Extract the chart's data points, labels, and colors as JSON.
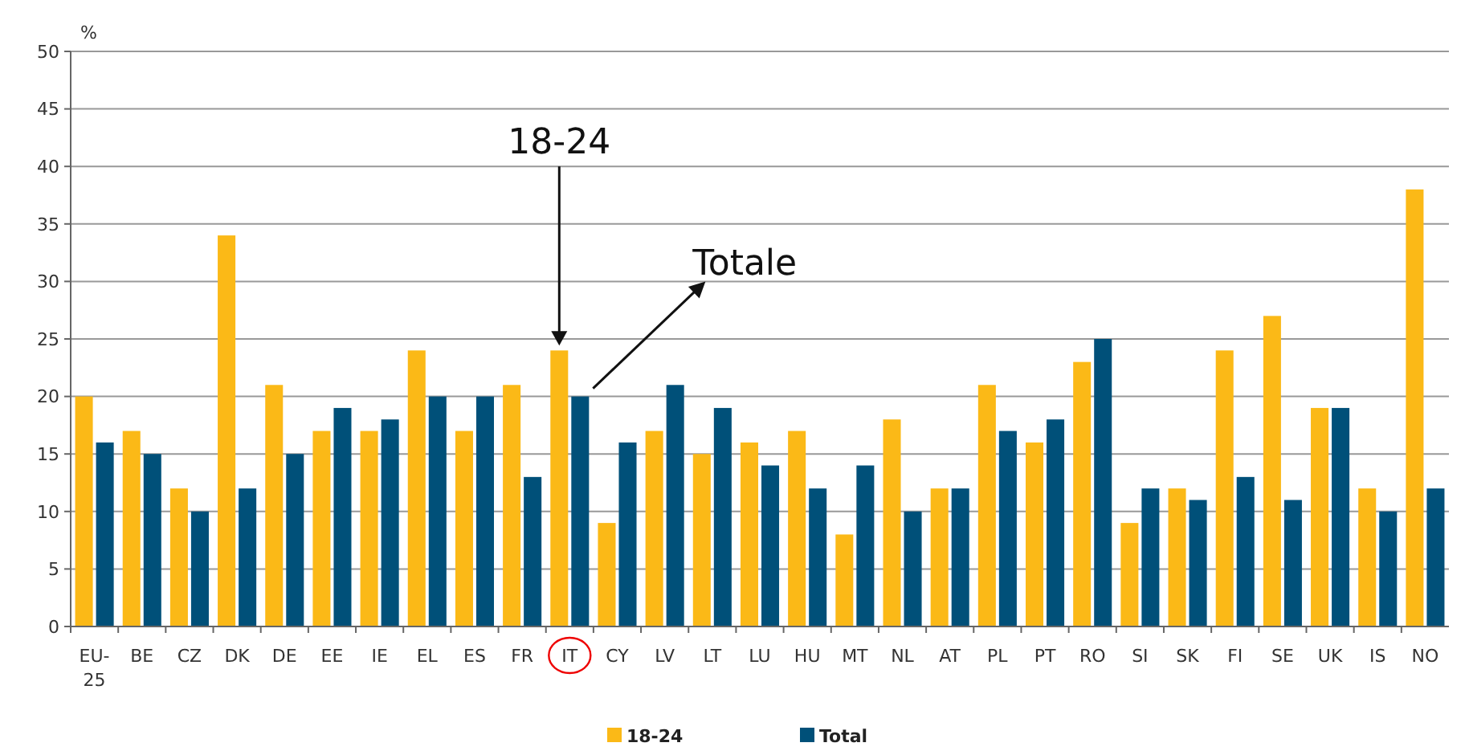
{
  "chart_data": {
    "type": "bar",
    "ylabel": "%",
    "categories": [
      "EU-25",
      "BE",
      "CZ",
      "DK",
      "DE",
      "EE",
      "IE",
      "EL",
      "ES",
      "FR",
      "IT",
      "CY",
      "LV",
      "LT",
      "LU",
      "HU",
      "MT",
      "NL",
      "AT",
      "PL",
      "PT",
      "RO",
      "SI",
      "SK",
      "FI",
      "SE",
      "UK",
      "IS",
      "NO"
    ],
    "series": [
      {
        "name": "18-24",
        "color": "#fbb917",
        "values": [
          20,
          17,
          12,
          34,
          21,
          17,
          17,
          24,
          17,
          21,
          24,
          9,
          17,
          15,
          16,
          17,
          8,
          18,
          12,
          21,
          16,
          23,
          9,
          12,
          24,
          27,
          19,
          12,
          38
        ]
      },
      {
        "name": "Total",
        "color": "#005079",
        "values": [
          16,
          15,
          10,
          12,
          15,
          19,
          18,
          20,
          20,
          13,
          20,
          16,
          21,
          19,
          14,
          12,
          14,
          10,
          12,
          17,
          18,
          25,
          12,
          11,
          13,
          11,
          19,
          10,
          12
        ]
      }
    ],
    "ylim": [
      0,
      50
    ],
    "yticks": [
      0,
      5,
      10,
      15,
      20,
      25,
      30,
      35,
      40,
      45,
      50
    ],
    "grid": "y",
    "legend": "bottom",
    "annotations": [
      "18-24",
      "Totale"
    ]
  }
}
